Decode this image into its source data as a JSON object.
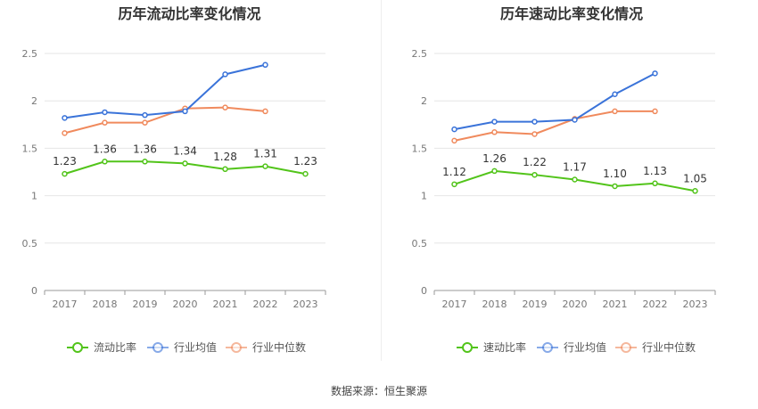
{
  "footer": {
    "source": "数据来源：恒生聚源"
  },
  "chart_data": [
    {
      "type": "line",
      "title": "历年流动比率变化情况",
      "x": [
        "2017",
        "2018",
        "2019",
        "2020",
        "2021",
        "2022",
        "2023"
      ],
      "ylim": [
        0,
        2.5
      ],
      "yticks": [
        0,
        0.5,
        1,
        1.5,
        2,
        2.5
      ],
      "ytick_labels": [
        "0",
        "0.5",
        "1",
        "1.5",
        "2",
        "2.5"
      ],
      "grid": true,
      "legend_position": "bottom",
      "series": [
        {
          "name": "流动比率",
          "color": "#52c41a",
          "values": [
            1.23,
            1.36,
            1.36,
            1.34,
            1.28,
            1.31,
            1.23
          ],
          "labels": [
            "1.23",
            "1.36",
            "1.36",
            "1.34",
            "1.28",
            "1.31",
            "1.23"
          ]
        },
        {
          "name": "行业均值",
          "color": "#3a73d9",
          "values": [
            1.82,
            1.88,
            1.85,
            1.89,
            2.28,
            2.38,
            null
          ]
        },
        {
          "name": "行业中位数",
          "color": "#f08a5d",
          "values": [
            1.66,
            1.77,
            1.77,
            1.92,
            1.93,
            1.89,
            null
          ]
        }
      ]
    },
    {
      "type": "line",
      "title": "历年速动比率变化情况",
      "x": [
        "2017",
        "2018",
        "2019",
        "2020",
        "2021",
        "2022",
        "2023"
      ],
      "ylim": [
        0,
        2.5
      ],
      "yticks": [
        0,
        0.5,
        1,
        1.5,
        2,
        2.5
      ],
      "ytick_labels": [
        "0",
        "0.5",
        "1",
        "1.5",
        "2",
        "2.5"
      ],
      "grid": true,
      "legend_position": "bottom",
      "series": [
        {
          "name": "速动比率",
          "color": "#52c41a",
          "values": [
            1.12,
            1.26,
            1.22,
            1.17,
            1.1,
            1.13,
            1.05
          ],
          "labels": [
            "1.12",
            "1.26",
            "1.22",
            "1.17",
            "1.10",
            "1.13",
            "1.05"
          ]
        },
        {
          "name": "行业均值",
          "color": "#3a73d9",
          "values": [
            1.7,
            1.78,
            1.78,
            1.8,
            2.07,
            2.29,
            null
          ]
        },
        {
          "name": "行业中位数",
          "color": "#f08a5d",
          "values": [
            1.58,
            1.67,
            1.65,
            1.81,
            1.89,
            1.89,
            null
          ]
        }
      ]
    }
  ]
}
